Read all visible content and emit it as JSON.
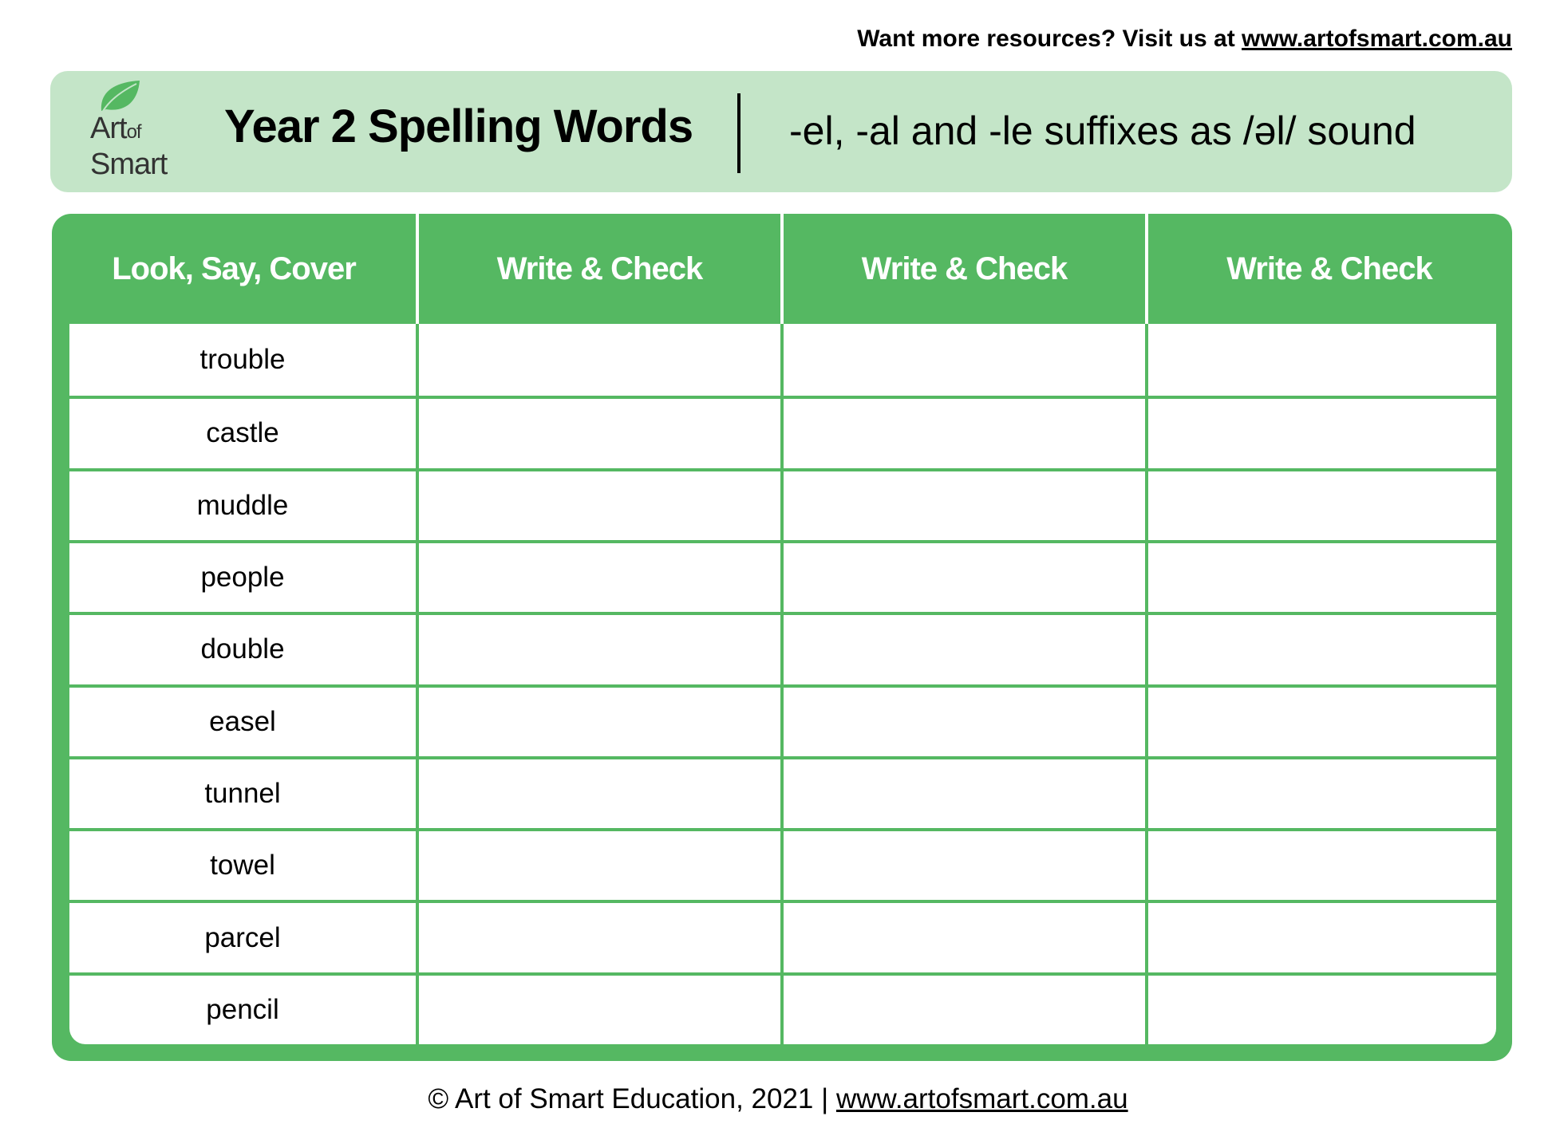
{
  "top_link": {
    "text": "Want more resources? Visit us at ",
    "url_text": "www.artofsmart.com.au"
  },
  "banner": {
    "logo": {
      "line1": "Art",
      "line1_small": "of",
      "line2": "Smart",
      "icon": "leaf-icon"
    },
    "title": "Year 2 Spelling Words",
    "subtitle": "-el, -al and -le suffixes as /əl/ sound"
  },
  "table": {
    "headers": [
      "Look, Say, Cover",
      "Write & Check",
      "Write & Check",
      "Write & Check"
    ],
    "words": [
      "trouble",
      "castle",
      "muddle",
      "people",
      "double",
      "easel",
      "tunnel",
      "towel",
      "parcel",
      "pencil"
    ]
  },
  "footer": {
    "text": "© Art of Smart Education, 2021 | ",
    "url_text": "www.artofsmart.com.au"
  },
  "colors": {
    "green": "#55b862",
    "light_green": "#c4e5c8"
  }
}
